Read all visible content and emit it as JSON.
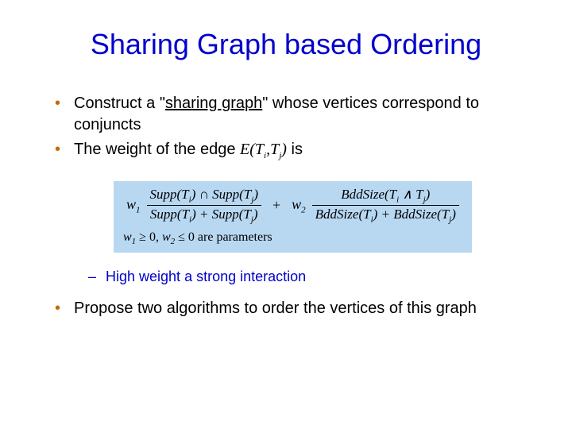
{
  "title": {
    "text": "Sharing Graph based Ordering",
    "color": "#0000cc",
    "fontsize": 36
  },
  "bullets": {
    "b1_pre": "Construct a \"",
    "b1_mid": "sharing graph",
    "b1_post": "\" whose vertices correspond to conjuncts",
    "b2_pre": "The weight of the edge ",
    "b2_edge": "E(T",
    "b2_i": "i",
    "b2_comma": ",T",
    "b2_j": "j",
    "b2_close": ")",
    "b2_post": " is",
    "b3": "Propose two algorithms to order the vertices of this graph",
    "bullet_color": "#cc6600"
  },
  "sub": {
    "s1_a": "High weight ",
    "s1_b": "a",
    "s1_c": " strong interaction",
    "color": "#0000cc"
  },
  "formula": {
    "background": "#b8d8f2",
    "w1": "w",
    "w1sub": "1",
    "w2": "w",
    "w2sub": "2",
    "plus": "+",
    "num1_a": "Supp(T",
    "num1_b": ") ∩ Supp(T",
    "num1_c": ")",
    "den1_a": "Supp(T",
    "den1_b": ") + Supp(T",
    "den1_c": ")",
    "num2_a": "BddSize(T",
    "num2_b": " ∧ T",
    "num2_c": ")",
    "den2_a": "BddSize(T",
    "den2_b": ") + BddSize(T",
    "den2_c": ")",
    "i": "i",
    "j": "j",
    "params_a": "w",
    "params_b": " ≥ 0, ",
    "params_c": "w",
    "params_d": " ≤ 0 ",
    "params_e": "are parameters",
    "p1sub": "1",
    "p2sub": "2"
  }
}
